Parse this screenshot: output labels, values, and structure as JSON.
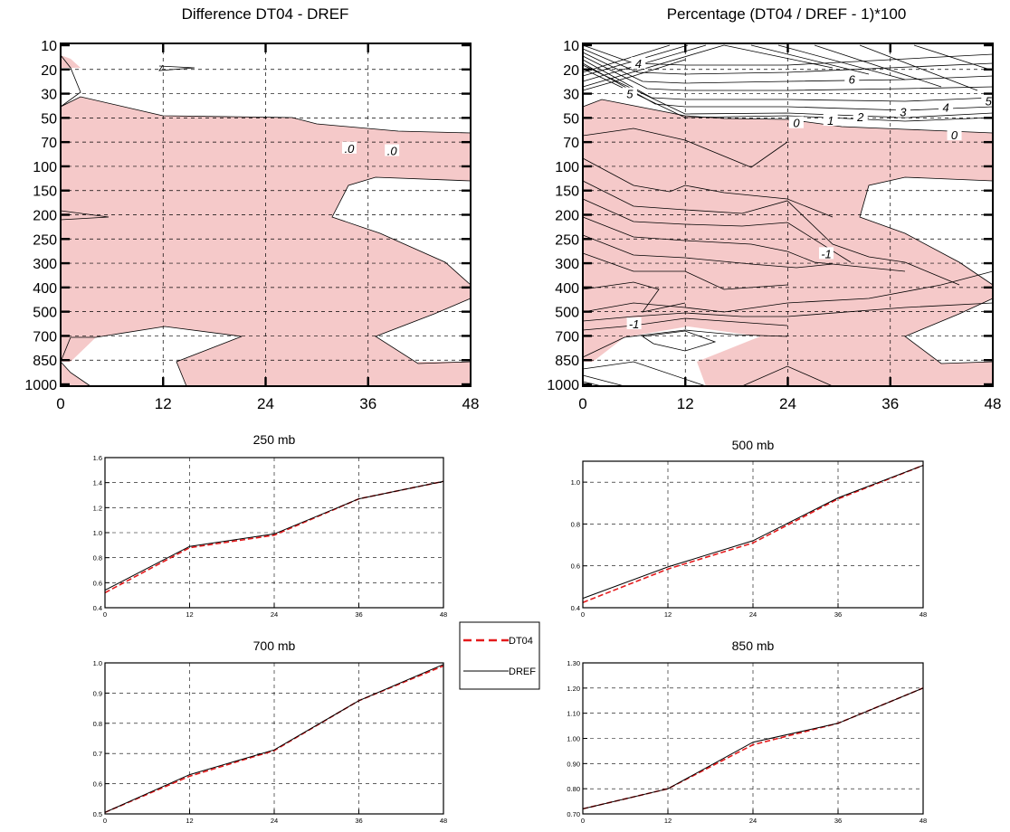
{
  "chart_data": [
    {
      "id": "diff",
      "type": "contour",
      "title": "Difference DT04 - DREF",
      "x_ticks": [
        "0",
        "12",
        "24",
        "36",
        "48"
      ],
      "xlim": [
        0,
        48
      ],
      "y_levels": [
        "10",
        "20",
        "30",
        "50",
        "70",
        "100",
        "150",
        "200",
        "250",
        "300",
        "400",
        "500",
        "700",
        "850",
        "1000"
      ],
      "negative_fill": "#f5c9c9",
      "contour_labels": [
        {
          "text": ".0",
          "x": 33.8,
          "level": 4.25
        },
        {
          "text": ".0",
          "x": 38.8,
          "level": 4.35
        }
      ]
    },
    {
      "id": "pct",
      "type": "contour",
      "title": "Percentage (DT04 / DREF - 1)*100",
      "x_ticks": [
        "0",
        "12",
        "24",
        "36",
        "48"
      ],
      "xlim": [
        0,
        48
      ],
      "y_levels": [
        "10",
        "20",
        "30",
        "50",
        "70",
        "100",
        "150",
        "200",
        "250",
        "300",
        "400",
        "500",
        "700",
        "850",
        "1000"
      ],
      "negative_fill": "#f5c9c9",
      "contour_labels": [
        {
          "text": "4",
          "x": 6.5,
          "level": 0.75
        },
        {
          "text": "6",
          "x": 31.5,
          "level": 1.4
        },
        {
          "text": "5",
          "x": 47.5,
          "level": 2.3
        },
        {
          "text": "4",
          "x": 42.5,
          "level": 2.55
        },
        {
          "text": "3",
          "x": 37.5,
          "level": 2.75
        },
        {
          "text": "2",
          "x": 32.5,
          "level": 2.95
        },
        {
          "text": "1",
          "x": 29.0,
          "level": 3.1
        },
        {
          "text": "0",
          "x": 25.0,
          "level": 3.2
        },
        {
          "text": "0",
          "x": 43.5,
          "level": 3.7
        },
        {
          "text": "5",
          "x": 5.5,
          "level": 2.0
        },
        {
          "text": "-1",
          "x": 28.5,
          "level": 8.6
        },
        {
          "text": "-1",
          "x": 6.0,
          "level": 11.5
        }
      ]
    },
    {
      "id": "p250",
      "type": "line",
      "title": "250 mb",
      "x": [
        0,
        12,
        24,
        36,
        48
      ],
      "xlim": [
        0,
        48
      ],
      "ylim": [
        0.4,
        1.6
      ],
      "y_ticks": [
        "0.4",
        "0.6",
        "0.8",
        "1.0",
        "1.2",
        "1.4",
        "1.6"
      ],
      "series": [
        {
          "name": "DT04",
          "values": [
            0.52,
            0.88,
            0.98,
            1.27,
            1.41
          ]
        },
        {
          "name": "DREF",
          "values": [
            0.54,
            0.89,
            0.99,
            1.27,
            1.41
          ]
        }
      ]
    },
    {
      "id": "p500",
      "type": "line",
      "title": "500 mb",
      "x": [
        0,
        12,
        24,
        36,
        48
      ],
      "xlim": [
        0,
        48
      ],
      "ylim": [
        0.4,
        1.1
      ],
      "y_ticks": [
        "0.4",
        "0.6",
        "0.8",
        "1.0"
      ],
      "series": [
        {
          "name": "DT04",
          "values": [
            0.425,
            0.585,
            0.71,
            0.92,
            1.08
          ]
        },
        {
          "name": "DREF",
          "values": [
            0.445,
            0.595,
            0.72,
            0.925,
            1.08
          ]
        }
      ]
    },
    {
      "id": "p700",
      "type": "line",
      "title": "700 mb",
      "x": [
        0,
        12,
        24,
        36,
        48
      ],
      "xlim": [
        0,
        48
      ],
      "ylim": [
        0.5,
        1.0
      ],
      "y_ticks": [
        "0.5",
        "0.6",
        "0.7",
        "0.8",
        "0.9",
        "1.0"
      ],
      "series": [
        {
          "name": "DT04",
          "values": [
            0.505,
            0.625,
            0.71,
            0.875,
            0.99
          ]
        },
        {
          "name": "DREF",
          "values": [
            0.505,
            0.63,
            0.712,
            0.875,
            0.995
          ]
        }
      ]
    },
    {
      "id": "p850",
      "type": "line",
      "title": "850 mb",
      "x": [
        0,
        12,
        24,
        36,
        48
      ],
      "xlim": [
        0,
        48
      ],
      "ylim": [
        0.7,
        1.3
      ],
      "y_ticks": [
        "0.70",
        "0.80",
        "0.90",
        "1.00",
        "1.10",
        "1.20",
        "1.30"
      ],
      "series": [
        {
          "name": "DT04",
          "values": [
            0.72,
            0.8,
            0.975,
            1.06,
            1.2
          ]
        },
        {
          "name": "DREF",
          "values": [
            0.72,
            0.8,
            0.985,
            1.06,
            1.2
          ]
        }
      ]
    }
  ],
  "legend": {
    "entries": [
      {
        "label": "DT04",
        "color": "#e41a1c",
        "dash": "dashed"
      },
      {
        "label": "DREF",
        "color": "#000000",
        "dash": "solid"
      }
    ]
  }
}
